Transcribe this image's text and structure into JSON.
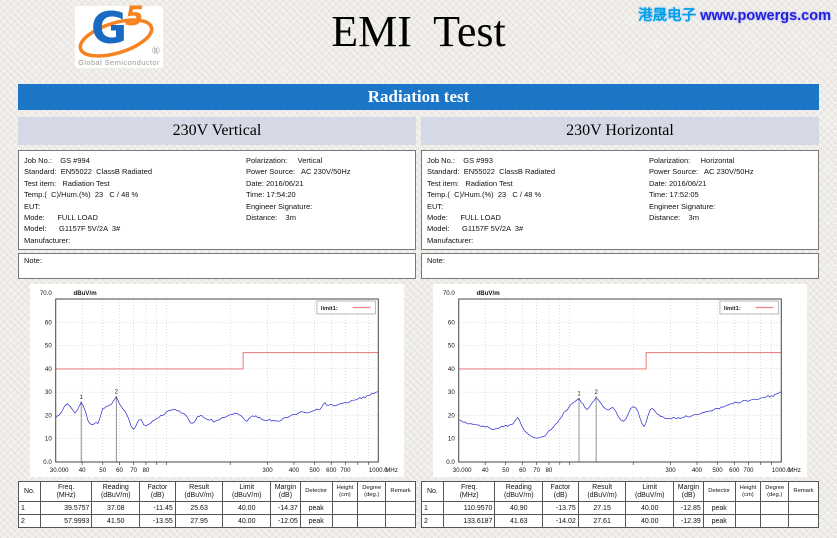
{
  "header": {
    "logo": {
      "g": "G",
      "five": "5",
      "registered": "®",
      "caption": "Global Semiconductor"
    },
    "title": "EMI  Test",
    "site": {
      "company": "港晟电子",
      "url": "www.powergs.com"
    }
  },
  "banner": {
    "label": "Radiation test"
  },
  "table": {
    "headers": [
      [
        "No.",
        ""
      ],
      [
        "Freq.",
        "(MHz)"
      ],
      [
        "Reading",
        "(dBuV/m)"
      ],
      [
        "Factor",
        "(dB)"
      ],
      [
        "Result",
        "(dBuV/m)"
      ],
      [
        "Limit",
        "(dBuV/m)"
      ],
      [
        "Margin",
        "(dB)"
      ],
      [
        "Detector",
        ""
      ],
      [
        "Height",
        "(cm)"
      ],
      [
        "Degree",
        "(deg.)"
      ],
      [
        "Remark",
        ""
      ]
    ]
  },
  "panels": [
    {
      "title": "230V Vertical",
      "note_label": "Note:",
      "info_left": [
        "Job No.:    GS #994",
        "Standard:  EN55022  ClassB Radiated",
        "Test item:   Radiation Test",
        "Temp.(  C)/Hum.(%)  23   C / 48 %",
        "EUT:",
        "Mode:      FULL LOAD",
        "Model:      G1157F 5V/2A  3#",
        "Manufacturer:"
      ],
      "info_right": [
        "Polarization:     Vertical",
        "Power Source:   AC 230V/50Hz",
        "Date: 2016/06/21",
        "Time: 17:54:20",
        "Engineer Signature:",
        "Distance:    3m"
      ],
      "rows": [
        [
          "1",
          "39.5757",
          "37.08",
          "-11.45",
          "25.63",
          "40.00",
          "-14.37",
          "peak",
          "",
          "",
          ""
        ],
        [
          "2",
          "57.9993",
          "41.50",
          "-13.55",
          "27.95",
          "40.00",
          "-12.05",
          "peak",
          "",
          "",
          ""
        ]
      ]
    },
    {
      "title": "230V Horizontal",
      "note_label": "Note:",
      "info_left": [
        "Job No.:    GS #993",
        "Standard:  EN55022  ClassB Radiated",
        "Test item:   Radiation Test",
        "Temp.(  C)/Hum.(%)  23   C / 48 %",
        "EUT:",
        "Mode:      FULL LOAD",
        "Model:      G1157F 5V/2A  3#",
        "Manufacturer:"
      ],
      "info_right": [
        "Polarization:     Horizontal",
        "Power Source:   AC 230V/50Hz",
        "Date: 2016/06/21",
        "Time: 17:52:05",
        "Engineer Signature:",
        "Distance:    3m"
      ],
      "rows": [
        [
          "1",
          "110.9570",
          "40.90",
          "-13.75",
          "27.15",
          "40.00",
          "-12.85",
          "peak",
          "",
          "",
          ""
        ],
        [
          "2",
          "133.6187",
          "41.63",
          "-14.02",
          "27.61",
          "40.00",
          "-12.39",
          "peak",
          "",
          "",
          ""
        ]
      ]
    }
  ],
  "chart_data": [
    {
      "type": "line",
      "title": "230V Vertical radiated emission",
      "x_scale": "log",
      "x_unit": "MHz",
      "y_unit": "dBuV/m",
      "xlim": [
        30,
        1000
      ],
      "ylim": [
        0,
        70
      ],
      "grid": true,
      "legend": {
        "label": "limit1:",
        "position": "top-right"
      },
      "y_ticks": [
        {
          "v": 70,
          "label": "70.0"
        },
        {
          "v": 60,
          "label": "60"
        },
        {
          "v": 50,
          "label": "50"
        },
        {
          "v": 40,
          "label": "40"
        },
        {
          "v": 30,
          "label": "30"
        },
        {
          "v": 20,
          "label": "20"
        },
        {
          "v": 10,
          "label": "10"
        },
        {
          "v": 0,
          "label": "0.0"
        }
      ],
      "x_ticks": [
        {
          "v": 30,
          "label": "30.000"
        },
        {
          "v": 40,
          "label": "40"
        },
        {
          "v": 50,
          "label": "50"
        },
        {
          "v": 60,
          "label": "60"
        },
        {
          "v": 70,
          "label": "70"
        },
        {
          "v": 80,
          "label": "80"
        },
        {
          "v": 300,
          "label": "300"
        },
        {
          "v": 400,
          "label": "400"
        },
        {
          "v": 500,
          "label": "500"
        },
        {
          "v": 600,
          "label": "600"
        },
        {
          "v": 700,
          "label": "700"
        },
        {
          "v": 1000,
          "label": "1000.0"
        }
      ],
      "x_grid": [
        40,
        50,
        60,
        70,
        80,
        90,
        100,
        200,
        300,
        400,
        500,
        600,
        700,
        800,
        900
      ],
      "y_grid": [
        10,
        20,
        30,
        40,
        50,
        60
      ],
      "limit": {
        "color": "#ef8484",
        "points": [
          [
            30,
            40
          ],
          [
            230,
            40
          ],
          [
            230,
            47
          ],
          [
            1000,
            47
          ]
        ]
      },
      "markers": [
        {
          "label": "1",
          "x": 39.5757,
          "y": 25.63
        },
        {
          "label": "2",
          "x": 57.9993,
          "y": 27.95
        }
      ],
      "trace": {
        "color": "#2a2ad0",
        "points": [
          [
            30,
            19
          ],
          [
            31,
            20
          ],
          [
            32,
            21.5
          ],
          [
            33,
            24
          ],
          [
            34,
            25
          ],
          [
            35,
            24
          ],
          [
            36,
            22.5
          ],
          [
            37,
            21
          ],
          [
            38,
            22.5
          ],
          [
            39,
            24.5
          ],
          [
            39.6,
            25.6
          ],
          [
            40.5,
            24
          ],
          [
            41.5,
            21.5
          ],
          [
            42.5,
            18
          ],
          [
            43.5,
            16.5
          ],
          [
            44.5,
            16
          ],
          [
            45.5,
            16.3
          ],
          [
            46.5,
            17
          ],
          [
            47.5,
            16.5
          ],
          [
            48.5,
            19
          ],
          [
            50,
            23
          ],
          [
            52,
            24
          ],
          [
            54,
            24.5
          ],
          [
            56,
            26
          ],
          [
            58,
            27.9
          ],
          [
            59,
            26.5
          ],
          [
            60,
            25
          ],
          [
            62,
            23
          ],
          [
            64,
            21.5
          ],
          [
            66,
            19
          ],
          [
            68,
            15.5
          ],
          [
            70,
            14
          ],
          [
            72,
            15.8
          ],
          [
            74,
            18
          ],
          [
            76,
            18.3
          ],
          [
            78,
            16
          ],
          [
            80,
            15.5
          ],
          [
            84,
            16.5
          ],
          [
            88,
            18
          ],
          [
            92,
            19
          ],
          [
            96,
            20
          ],
          [
            100,
            21.5
          ],
          [
            105,
            22.3
          ],
          [
            110,
            22.5
          ],
          [
            115,
            22
          ],
          [
            120,
            21
          ],
          [
            125,
            19.5
          ],
          [
            130,
            16.8
          ],
          [
            135,
            17
          ],
          [
            140,
            19.5
          ],
          [
            145,
            20
          ],
          [
            150,
            19
          ],
          [
            155,
            18.3
          ],
          [
            160,
            18
          ],
          [
            170,
            17.5
          ],
          [
            180,
            18.5
          ],
          [
            190,
            19.3
          ],
          [
            200,
            20.3
          ],
          [
            210,
            21
          ],
          [
            220,
            20.3
          ],
          [
            230,
            19
          ],
          [
            240,
            17.5
          ],
          [
            250,
            19.3
          ],
          [
            260,
            19.5
          ],
          [
            270,
            19
          ],
          [
            280,
            18.5
          ],
          [
            290,
            18
          ],
          [
            300,
            17.8
          ],
          [
            320,
            18
          ],
          [
            340,
            17.5
          ],
          [
            360,
            19
          ],
          [
            380,
            19.5
          ],
          [
            400,
            20.5
          ],
          [
            420,
            21
          ],
          [
            440,
            21.5
          ],
          [
            460,
            21
          ],
          [
            480,
            21.5
          ],
          [
            500,
            22
          ],
          [
            520,
            22.5
          ],
          [
            540,
            23.5
          ],
          [
            560,
            25.5
          ],
          [
            580,
            24.3
          ],
          [
            600,
            24.8
          ],
          [
            620,
            24
          ],
          [
            640,
            24.5
          ],
          [
            660,
            25
          ],
          [
            680,
            25.3
          ],
          [
            700,
            25.5
          ],
          [
            750,
            26.5
          ],
          [
            800,
            27
          ],
          [
            850,
            28
          ],
          [
            900,
            28.5
          ],
          [
            950,
            29.3
          ],
          [
            1000,
            30.2
          ]
        ]
      }
    },
    {
      "type": "line",
      "title": "230V Horizontal radiated emission",
      "x_scale": "log",
      "x_unit": "MHz",
      "y_unit": "dBuV/m",
      "xlim": [
        30,
        1000
      ],
      "ylim": [
        0,
        70
      ],
      "grid": true,
      "legend": {
        "label": "limit1:",
        "position": "top-right"
      },
      "y_ticks": [
        {
          "v": 70,
          "label": "70.0"
        },
        {
          "v": 60,
          "label": "60"
        },
        {
          "v": 50,
          "label": "50"
        },
        {
          "v": 40,
          "label": "40"
        },
        {
          "v": 30,
          "label": "30"
        },
        {
          "v": 20,
          "label": "20"
        },
        {
          "v": 10,
          "label": "10"
        },
        {
          "v": 0,
          "label": "0.0"
        }
      ],
      "x_ticks": [
        {
          "v": 30,
          "label": "30.000"
        },
        {
          "v": 40,
          "label": "40"
        },
        {
          "v": 50,
          "label": "50"
        },
        {
          "v": 60,
          "label": "60"
        },
        {
          "v": 70,
          "label": "70"
        },
        {
          "v": 80,
          "label": "80"
        },
        {
          "v": 300,
          "label": "300"
        },
        {
          "v": 400,
          "label": "400"
        },
        {
          "v": 500,
          "label": "500"
        },
        {
          "v": 600,
          "label": "600"
        },
        {
          "v": 700,
          "label": "700"
        },
        {
          "v": 1000,
          "label": "1000.0"
        }
      ],
      "x_grid": [
        40,
        50,
        60,
        70,
        80,
        90,
        100,
        200,
        300,
        400,
        500,
        600,
        700,
        800,
        900
      ],
      "y_grid": [
        10,
        20,
        30,
        40,
        50,
        60
      ],
      "limit": {
        "color": "#ef8484",
        "points": [
          [
            30,
            40
          ],
          [
            230,
            40
          ],
          [
            230,
            47
          ],
          [
            1000,
            47
          ]
        ]
      },
      "markers": [
        {
          "label": "1",
          "x": 110.957,
          "y": 27.15
        },
        {
          "label": "2",
          "x": 133.6187,
          "y": 27.61
        }
      ],
      "trace": {
        "color": "#2a2ad0",
        "points": [
          [
            30,
            18
          ],
          [
            32,
            17.2
          ],
          [
            34,
            16.5
          ],
          [
            36,
            16
          ],
          [
            38,
            15.3
          ],
          [
            40,
            15
          ],
          [
            42,
            14.5
          ],
          [
            44,
            14
          ],
          [
            46,
            14.3
          ],
          [
            48,
            15.3
          ],
          [
            50,
            15.8
          ],
          [
            52,
            15.8
          ],
          [
            54,
            16.3
          ],
          [
            56,
            18.3
          ],
          [
            57,
            19
          ],
          [
            58,
            18
          ],
          [
            60,
            15
          ],
          [
            62,
            13
          ],
          [
            64,
            12
          ],
          [
            66,
            11
          ],
          [
            68,
            10.5
          ],
          [
            70,
            10.2
          ],
          [
            72,
            10.4
          ],
          [
            74,
            10.8
          ],
          [
            76,
            11
          ],
          [
            78,
            12
          ],
          [
            80,
            13.5
          ],
          [
            84,
            15
          ],
          [
            88,
            17
          ],
          [
            92,
            19.5
          ],
          [
            96,
            22
          ],
          [
            100,
            24
          ],
          [
            104,
            25.5
          ],
          [
            108,
            26.5
          ],
          [
            111,
            27.2
          ],
          [
            114,
            25.5
          ],
          [
            118,
            23.5
          ],
          [
            121,
            22.5
          ],
          [
            124,
            23.5
          ],
          [
            128,
            25.5
          ],
          [
            131,
            26.5
          ],
          [
            133.6,
            27.6
          ],
          [
            136,
            27
          ],
          [
            140,
            25.5
          ],
          [
            145,
            23.5
          ],
          [
            150,
            22.5
          ],
          [
            155,
            22.8
          ],
          [
            160,
            23.5
          ],
          [
            165,
            22
          ],
          [
            170,
            19.5
          ],
          [
            175,
            18
          ],
          [
            180,
            17.5
          ],
          [
            185,
            18.5
          ],
          [
            190,
            21
          ],
          [
            195,
            23
          ],
          [
            200,
            23.8
          ],
          [
            205,
            23.3
          ],
          [
            210,
            22
          ],
          [
            215,
            19
          ],
          [
            220,
            16.5
          ],
          [
            225,
            15.2
          ],
          [
            230,
            17
          ],
          [
            235,
            20
          ],
          [
            240,
            22.3
          ],
          [
            245,
            23
          ],
          [
            250,
            22.5
          ],
          [
            255,
            21.5
          ],
          [
            260,
            20.5
          ],
          [
            270,
            19.5
          ],
          [
            280,
            19
          ],
          [
            290,
            18.7
          ],
          [
            300,
            18.5
          ],
          [
            320,
            18.5
          ],
          [
            340,
            19
          ],
          [
            360,
            19.5
          ],
          [
            380,
            20
          ],
          [
            400,
            20.5
          ],
          [
            420,
            21
          ],
          [
            440,
            21.5
          ],
          [
            460,
            22
          ],
          [
            480,
            22.5
          ],
          [
            500,
            23
          ],
          [
            530,
            23.5
          ],
          [
            560,
            24.5
          ],
          [
            590,
            25
          ],
          [
            620,
            25.5
          ],
          [
            650,
            26
          ],
          [
            680,
            26.5
          ],
          [
            710,
            26.5
          ],
          [
            750,
            27
          ],
          [
            800,
            27.5
          ],
          [
            850,
            28
          ],
          [
            900,
            28.5
          ],
          [
            950,
            29.2
          ],
          [
            1000,
            30.2
          ]
        ]
      }
    }
  ]
}
